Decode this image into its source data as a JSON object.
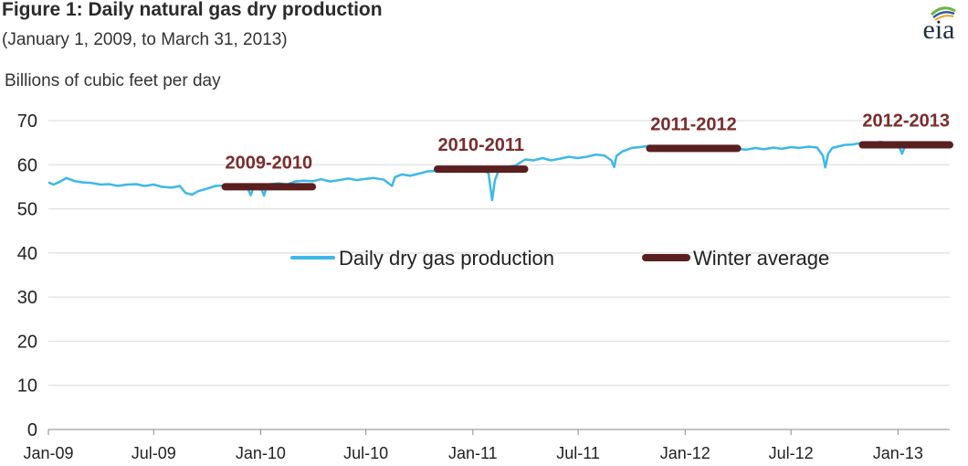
{
  "figure": {
    "title": "Figure 1: Daily natural gas dry production",
    "subtitle": "(January 1, 2009, to March 31, 2013)",
    "logo_text": "eia"
  },
  "colors": {
    "daily": "#3db8ea",
    "winter": "#5a1f1f",
    "period_label": "#7b2c2c",
    "grid": "#d9d9d9",
    "axis": "#888888",
    "logo_green": "#6fb43f",
    "logo_blue": "#2f5d9e",
    "logo_orange": "#f0a020"
  },
  "chart_data": {
    "type": "line",
    "title": "Figure 1: Daily natural gas dry production",
    "subtitle": "(January 1, 2009, to March 31, 2013)",
    "ylabel": "Billions of cubic feet per day",
    "xlabel": "",
    "ylim": [
      0,
      70
    ],
    "xlim": [
      "2009-01-01",
      "2013-03-31"
    ],
    "yticks": [
      0,
      10,
      20,
      30,
      40,
      50,
      60,
      70
    ],
    "xticks": [
      {
        "date": "2009-01-01",
        "label": "Jan-09"
      },
      {
        "date": "2009-07-01",
        "label": "Jul-09"
      },
      {
        "date": "2010-01-01",
        "label": "Jan-10"
      },
      {
        "date": "2010-07-01",
        "label": "Jul-10"
      },
      {
        "date": "2011-01-01",
        "label": "Jan-11"
      },
      {
        "date": "2011-07-01",
        "label": "Jul-11"
      },
      {
        "date": "2012-01-01",
        "label": "Jan-12"
      },
      {
        "date": "2012-07-01",
        "label": "Jul-12"
      },
      {
        "date": "2013-01-01",
        "label": "Jan-13"
      }
    ],
    "grid": true,
    "legend_position": "center",
    "series": [
      {
        "name": "Daily dry gas production",
        "style": "line",
        "points": [
          [
            "2009-01-01",
            56.0
          ],
          [
            "2009-01-10",
            55.5
          ],
          [
            "2009-01-20",
            56.1
          ],
          [
            "2009-02-01",
            57.0
          ],
          [
            "2009-02-15",
            56.3
          ],
          [
            "2009-03-01",
            56.0
          ],
          [
            "2009-03-15",
            55.9
          ],
          [
            "2009-04-01",
            55.5
          ],
          [
            "2009-04-15",
            55.6
          ],
          [
            "2009-05-01",
            55.2
          ],
          [
            "2009-05-15",
            55.5
          ],
          [
            "2009-06-01",
            55.6
          ],
          [
            "2009-06-15",
            55.2
          ],
          [
            "2009-07-01",
            55.5
          ],
          [
            "2009-07-15",
            55.0
          ],
          [
            "2009-08-01",
            54.8
          ],
          [
            "2009-08-15",
            55.2
          ],
          [
            "2009-08-25",
            53.6
          ],
          [
            "2009-09-05",
            53.2
          ],
          [
            "2009-09-15",
            54.0
          ],
          [
            "2009-10-01",
            54.6
          ],
          [
            "2009-10-15",
            55.2
          ],
          [
            "2009-11-01",
            55.3
          ],
          [
            "2009-11-15",
            55.0
          ],
          [
            "2009-12-01",
            55.4
          ],
          [
            "2009-12-10",
            54.5
          ],
          [
            "2009-12-15",
            53.1
          ],
          [
            "2009-12-20",
            55.0
          ],
          [
            "2010-01-01",
            54.9
          ],
          [
            "2010-01-07",
            53.0
          ],
          [
            "2010-01-12",
            55.5
          ],
          [
            "2010-02-01",
            55.8
          ],
          [
            "2010-02-15",
            55.5
          ],
          [
            "2010-03-01",
            56.2
          ],
          [
            "2010-03-15",
            56.4
          ],
          [
            "2010-04-01",
            56.3
          ],
          [
            "2010-04-15",
            56.7
          ],
          [
            "2010-05-01",
            56.2
          ],
          [
            "2010-05-15",
            56.5
          ],
          [
            "2010-06-01",
            56.9
          ],
          [
            "2010-06-15",
            56.5
          ],
          [
            "2010-07-01",
            56.8
          ],
          [
            "2010-07-15",
            57.0
          ],
          [
            "2010-08-01",
            56.6
          ],
          [
            "2010-08-15",
            55.2
          ],
          [
            "2010-08-20",
            57.2
          ],
          [
            "2010-09-01",
            57.8
          ],
          [
            "2010-09-15",
            57.5
          ],
          [
            "2010-10-01",
            58.0
          ],
          [
            "2010-10-15",
            58.5
          ],
          [
            "2010-11-01",
            58.6
          ],
          [
            "2010-11-15",
            59.0
          ],
          [
            "2010-12-01",
            59.3
          ],
          [
            "2010-12-15",
            59.0
          ],
          [
            "2011-01-01",
            59.2
          ],
          [
            "2011-01-15",
            59.5
          ],
          [
            "2011-01-28",
            58.0
          ],
          [
            "2011-02-03",
            52.0
          ],
          [
            "2011-02-08",
            56.5
          ],
          [
            "2011-02-15",
            59.0
          ],
          [
            "2011-03-01",
            59.5
          ],
          [
            "2011-03-15",
            59.8
          ],
          [
            "2011-04-01",
            61.2
          ],
          [
            "2011-04-15",
            61.0
          ],
          [
            "2011-05-01",
            61.5
          ],
          [
            "2011-05-15",
            61.0
          ],
          [
            "2011-06-01",
            61.4
          ],
          [
            "2011-06-15",
            61.8
          ],
          [
            "2011-07-01",
            61.5
          ],
          [
            "2011-07-15",
            61.8
          ],
          [
            "2011-08-01",
            62.3
          ],
          [
            "2011-08-15",
            62.1
          ],
          [
            "2011-08-27",
            61.0
          ],
          [
            "2011-09-01",
            59.5
          ],
          [
            "2011-09-05",
            62.0
          ],
          [
            "2011-09-15",
            63.0
          ],
          [
            "2011-10-01",
            63.8
          ],
          [
            "2011-10-15",
            64.0
          ],
          [
            "2011-11-01",
            64.3
          ],
          [
            "2011-11-15",
            64.0
          ],
          [
            "2011-12-01",
            64.2
          ],
          [
            "2011-12-15",
            63.9
          ],
          [
            "2012-01-01",
            64.1
          ],
          [
            "2012-01-15",
            64.0
          ],
          [
            "2012-02-01",
            63.7
          ],
          [
            "2012-02-15",
            63.6
          ],
          [
            "2012-03-01",
            63.8
          ],
          [
            "2012-03-15",
            63.5
          ],
          [
            "2012-04-01",
            63.6
          ],
          [
            "2012-04-15",
            63.4
          ],
          [
            "2012-05-01",
            63.8
          ],
          [
            "2012-05-15",
            63.5
          ],
          [
            "2012-06-01",
            63.9
          ],
          [
            "2012-06-15",
            63.6
          ],
          [
            "2012-07-01",
            64.0
          ],
          [
            "2012-07-15",
            63.8
          ],
          [
            "2012-08-01",
            64.1
          ],
          [
            "2012-08-15",
            63.9
          ],
          [
            "2012-08-25",
            62.0
          ],
          [
            "2012-08-29",
            59.4
          ],
          [
            "2012-09-03",
            62.5
          ],
          [
            "2012-09-10",
            63.8
          ],
          [
            "2012-10-01",
            64.5
          ],
          [
            "2012-10-15",
            64.6
          ],
          [
            "2012-11-01",
            65.0
          ],
          [
            "2012-11-15",
            64.8
          ],
          [
            "2012-12-01",
            65.2
          ],
          [
            "2012-12-15",
            65.0
          ],
          [
            "2013-01-01",
            64.8
          ],
          [
            "2013-01-08",
            62.5
          ],
          [
            "2013-01-14",
            64.5
          ],
          [
            "2013-02-01",
            64.6
          ],
          [
            "2013-02-15",
            64.4
          ],
          [
            "2013-03-01",
            64.8
          ],
          [
            "2013-03-15",
            64.5
          ],
          [
            "2013-03-31",
            64.6
          ]
        ]
      },
      {
        "name": "Winter average",
        "style": "segments",
        "segments": [
          {
            "label": "2009-2010",
            "start": "2009-11-01",
            "end": "2010-03-31",
            "value": 55.0
          },
          {
            "label": "2010-2011",
            "start": "2010-11-01",
            "end": "2011-03-31",
            "value": 59.0
          },
          {
            "label": "2011-2012",
            "start": "2011-11-01",
            "end": "2012-03-31",
            "value": 63.7
          },
          {
            "label": "2012-2013",
            "start": "2012-11-01",
            "end": "2013-03-31",
            "value": 64.5
          }
        ]
      }
    ]
  }
}
